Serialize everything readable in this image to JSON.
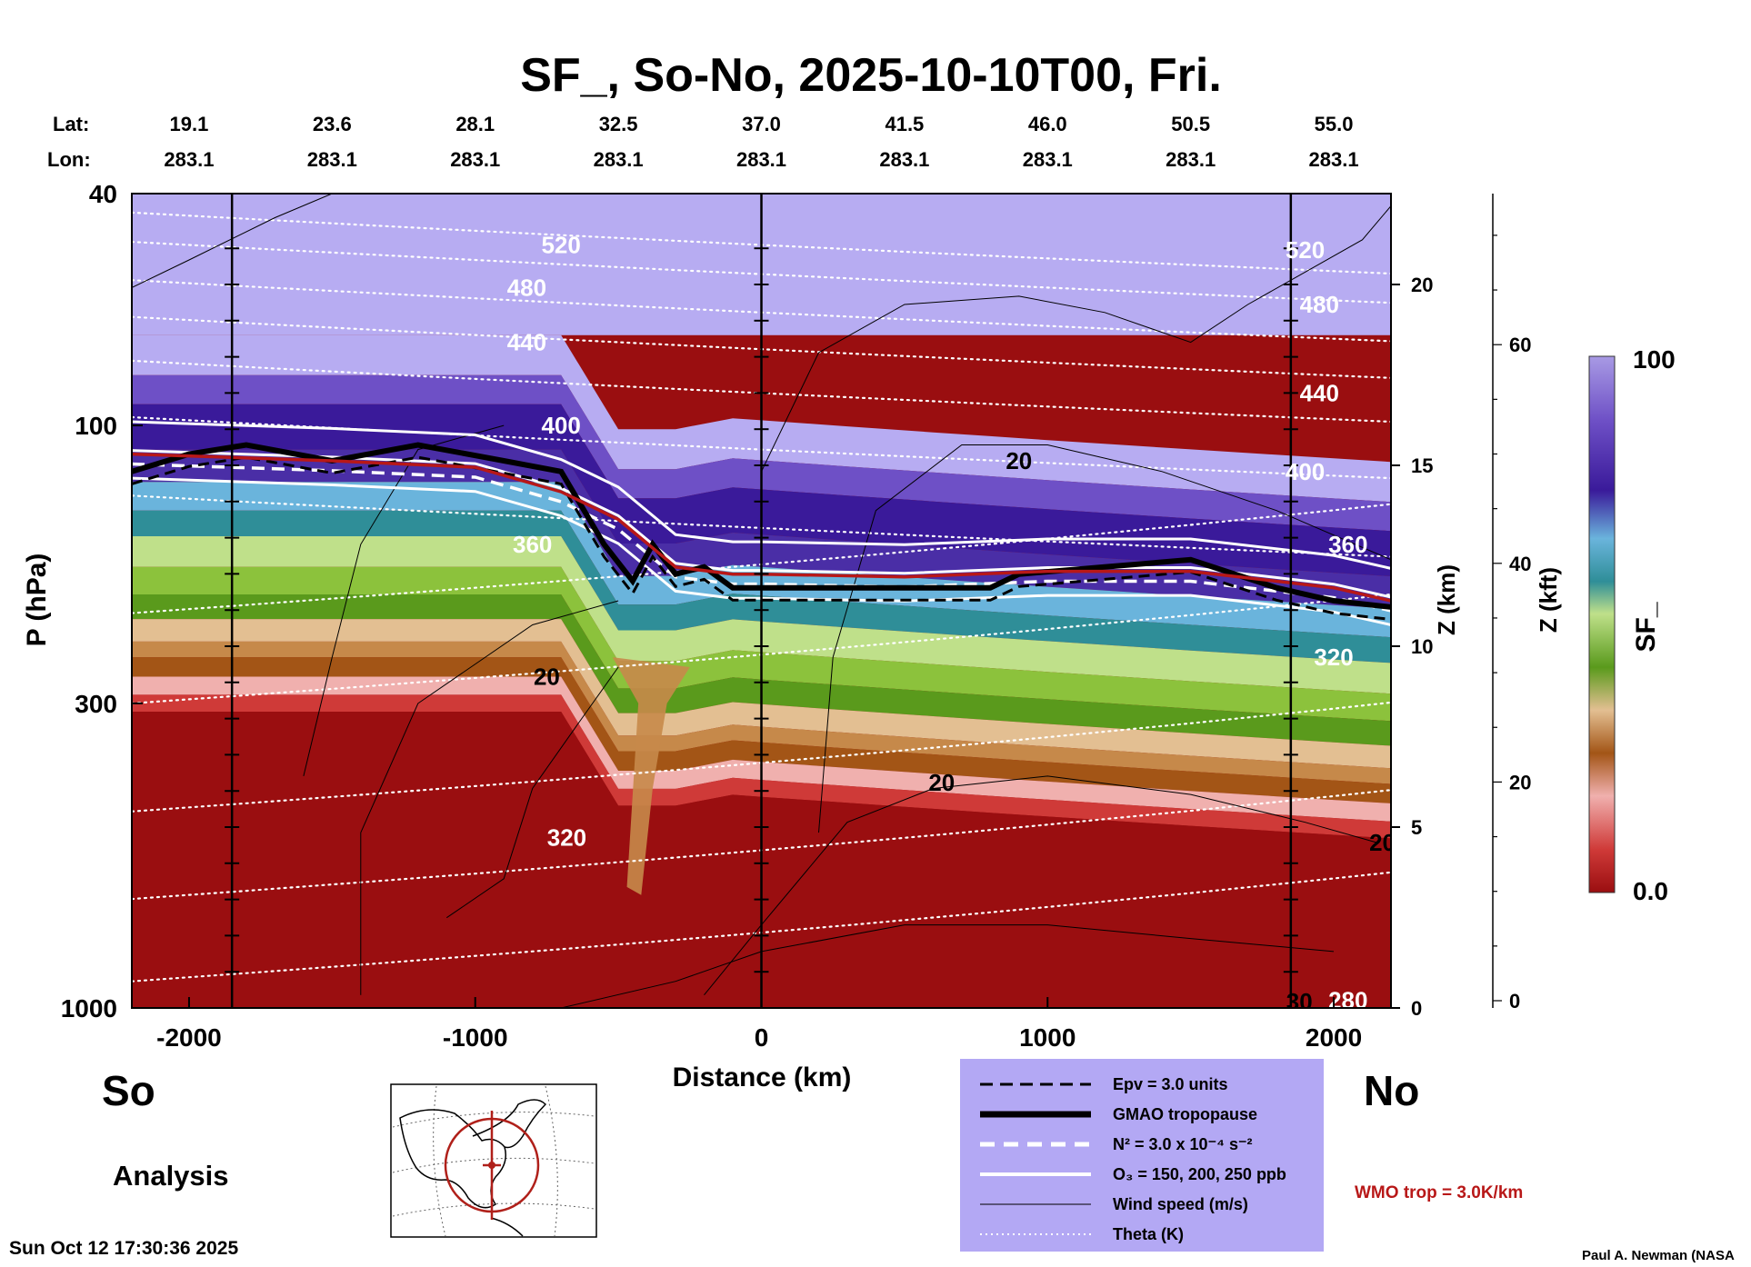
{
  "chart_data": {
    "type": "heatmap",
    "title": "SF_, So-No, 2025-10-10T00, Fri.",
    "xlabel": "Distance (km)",
    "ylabel": "P (hPa)",
    "y2label": "Z (km)",
    "y3label": "Z (kft)",
    "colorbar_label": "SF_",
    "xlim": [
      -2200,
      2200
    ],
    "ylim": [
      1000,
      40
    ],
    "y_scale": "log",
    "x_ticks": [
      -2000,
      -1000,
      0,
      1000,
      2000
    ],
    "x_tick_labels": [
      "-2000",
      "-1000",
      "0",
      "1000",
      "2000"
    ],
    "y_ticks": [
      40,
      100,
      300,
      1000
    ],
    "y_tick_labels": [
      "40",
      "100",
      "300",
      "1000"
    ],
    "z_km_ticks": [
      0,
      5,
      10,
      15,
      20
    ],
    "z_km_tick_labels": [
      "0",
      "5",
      "10",
      "15",
      "20"
    ],
    "z_kft_ticks": [
      0,
      20,
      40,
      60
    ],
    "z_kft_tick_labels": [
      "0",
      "20",
      "40",
      "60"
    ],
    "colorbar_ticks": [
      "100",
      "0.0"
    ],
    "header_lat_label": "Lat:",
    "header_lon_label": "Lon:",
    "header_lat": [
      "19.1",
      "23.6",
      "28.1",
      "32.5",
      "37.0",
      "41.5",
      "46.0",
      "50.5",
      "55.0"
    ],
    "header_lon": [
      "283.1",
      "283.1",
      "283.1",
      "283.1",
      "283.1",
      "283.1",
      "283.1",
      "283.1",
      "283.1"
    ],
    "header_km": [
      -2000,
      -1500,
      -1000,
      -500,
      0,
      500,
      1000,
      1500,
      2000
    ],
    "vertical_markers_km": [
      -1850,
      0,
      1850
    ],
    "tropopause_hpa": {
      "x": [
        -2200,
        -2000,
        -1800,
        -1500,
        -1200,
        -900,
        -700,
        -550,
        -450,
        -380,
        -300,
        -200,
        -100,
        0,
        300,
        600,
        800,
        900,
        1200,
        1500,
        1800,
        2000,
        2200
      ],
      "y": [
        120,
        112,
        108,
        115,
        108,
        115,
        120,
        160,
        185,
        160,
        180,
        175,
        190,
        190,
        190,
        190,
        190,
        180,
        175,
        170,
        190,
        200,
        205
      ]
    },
    "wmo_trop_hpa": {
      "x": [
        -2200,
        -1500,
        -1000,
        -700,
        -500,
        -300,
        -100,
        0,
        500,
        1000,
        1500,
        2000,
        2200
      ],
      "y": [
        112,
        115,
        118,
        130,
        145,
        175,
        180,
        180,
        182,
        178,
        178,
        190,
        200
      ]
    },
    "theta_labels": [
      {
        "text": "520",
        "x": -700,
        "p": 49
      },
      {
        "text": "480",
        "x": -820,
        "p": 58
      },
      {
        "text": "440",
        "x": -820,
        "p": 72
      },
      {
        "text": "400",
        "x": -700,
        "p": 100
      },
      {
        "text": "360",
        "x": -800,
        "p": 160
      },
      {
        "text": "320",
        "x": -680,
        "p": 510
      },
      {
        "text": "520",
        "x": 1900,
        "p": 50
      },
      {
        "text": "480",
        "x": 1950,
        "p": 62
      },
      {
        "text": "440",
        "x": 1950,
        "p": 88
      },
      {
        "text": "400",
        "x": 1900,
        "p": 120
      },
      {
        "text": "360",
        "x": 2050,
        "p": 160
      },
      {
        "text": "320",
        "x": 2000,
        "p": 250
      },
      {
        "text": "280",
        "x": 2050,
        "p": 970
      }
    ],
    "wind_labels": [
      {
        "text": "20",
        "x": 900,
        "p": 115
      },
      {
        "text": "20",
        "x": -750,
        "p": 270
      },
      {
        "text": "20",
        "x": 630,
        "p": 410
      },
      {
        "text": "20",
        "x": 2170,
        "p": 520
      },
      {
        "text": "30",
        "x": 1880,
        "p": 975
      }
    ],
    "colormap": [
      "#9a0e10",
      "#b81c1c",
      "#cf3a38",
      "#e07a78",
      "#f0b0ae",
      "#a35516",
      "#c6894a",
      "#e3bf92",
      "#5a9a1c",
      "#8cc23c",
      "#bfe08a",
      "#2f8e98",
      "#3e8fc4",
      "#6ab4dc",
      "#4a2ea6",
      "#3a1a9a",
      "#6e50c6",
      "#a89ae4",
      "#b7acf2"
    ]
  },
  "labels": {
    "south": "So",
    "north": "No",
    "analysis": "Analysis",
    "timestamp": "Sun Oct 12 17:30:36 2025",
    "credit": "Paul A. Newman (NASA"
  },
  "legend": {
    "items": [
      {
        "style": "dashed-thin",
        "label": "Epv = 3.0 units"
      },
      {
        "style": "solid-thick",
        "label": "GMAO tropopause"
      },
      {
        "style": "dashed-white",
        "label": "N² = 3.0 x 10⁻⁴ s⁻²"
      },
      {
        "style": "solid-white",
        "label": "O₃ = 150, 200, 250 ppb"
      },
      {
        "style": "solid-thin",
        "label": "Wind speed (m/s)"
      },
      {
        "style": "dotted-white",
        "label": "Theta (K)"
      }
    ],
    "bg_color": "#b3a8f4",
    "wmo_label": "WMO trop = 3.0K/km"
  },
  "colors": {
    "tropopause": "#000000",
    "wmo_trop": "#b81818",
    "ozone": "#ffffff",
    "theta": "#ffffff",
    "wind": "#000000",
    "map_circle": "#b0201a"
  }
}
